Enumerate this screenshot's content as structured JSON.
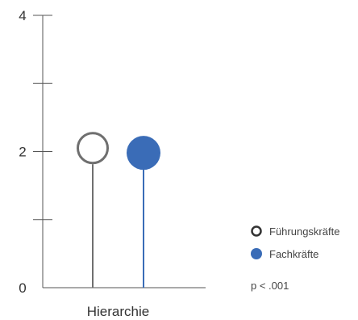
{
  "chart_data": {
    "type": "lollipop",
    "categories": [
      "Hierarchie"
    ],
    "series": [
      {
        "name": "Führungskräfte",
        "values": [
          2.05
        ],
        "color": "#6f6f6f",
        "marker": "hollow-circle"
      },
      {
        "name": "Fachkräfte",
        "values": [
          1.98
        ],
        "color": "#3a6cb7",
        "marker": "filled-circle"
      }
    ],
    "yticks": [
      0,
      1,
      2,
      3,
      4
    ],
    "ytick_labels": [
      "0",
      "",
      "2",
      "",
      "4"
    ],
    "ylim": [
      0,
      4
    ],
    "grid": false,
    "legend": {
      "placement": "right",
      "entries": [
        "Führungskräfte",
        "Fachkräfte"
      ]
    },
    "annotation": "p < .001"
  }
}
